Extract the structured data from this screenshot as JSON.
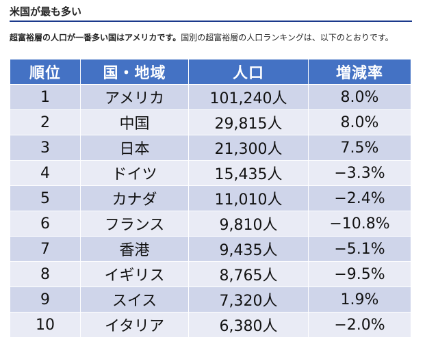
{
  "section": {
    "heading": "米国が最も多い",
    "intro_bold": "超富裕層の人口が一番多い国はアメリカです。",
    "intro_rest": "国別の超富裕層の人口ランキングは、以下のとおりです。"
  },
  "table": {
    "headers": [
      "順位",
      "国・地域",
      "人口",
      "増減率"
    ],
    "rows": [
      {
        "rank": "1",
        "country": "アメリカ",
        "population": "101,240人",
        "change": "8.0%"
      },
      {
        "rank": "2",
        "country": "中国",
        "population": "29,815人",
        "change": "8.0%"
      },
      {
        "rank": "3",
        "country": "日本",
        "population": "21,300人",
        "change": "7.5%"
      },
      {
        "rank": "4",
        "country": "ドイツ",
        "population": "15,435人",
        "change": "−3.3%"
      },
      {
        "rank": "5",
        "country": "カナダ",
        "population": "11,010人",
        "change": "−2.4%"
      },
      {
        "rank": "6",
        "country": "フランス",
        "population": "9,810人",
        "change": "−10.8%"
      },
      {
        "rank": "7",
        "country": "香港",
        "population": "9,435人",
        "change": "−5.1%"
      },
      {
        "rank": "8",
        "country": "イギリス",
        "population": "8,765人",
        "change": "−9.5%"
      },
      {
        "rank": "9",
        "country": "スイス",
        "population": "7,320人",
        "change": "1.9%"
      },
      {
        "rank": "10",
        "country": "イタリア",
        "population": "6,380人",
        "change": "−2.0%"
      }
    ]
  }
}
